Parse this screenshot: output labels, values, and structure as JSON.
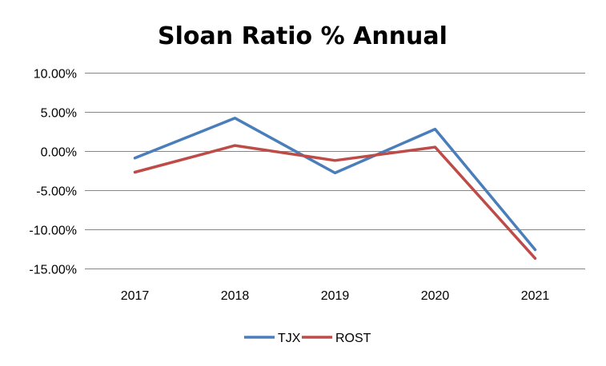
{
  "chart_data": {
    "type": "line",
    "title": "Sloan Ratio % Annual",
    "xlabel": "",
    "ylabel": "",
    "categories": [
      "2017",
      "2018",
      "2019",
      "2020",
      "2021"
    ],
    "y_ticks": [
      "10.00%",
      "5.00%",
      "0.00%",
      "-5.00%",
      "-10.00%",
      "-15.00%"
    ],
    "ylim": [
      -15,
      10
    ],
    "grid": true,
    "legend_position": "bottom",
    "series": [
      {
        "name": "TJX",
        "color": "#4a7ebb",
        "values": [
          -0.9,
          4.2,
          -2.8,
          2.8,
          -12.6
        ]
      },
      {
        "name": "ROST",
        "color": "#be4b48",
        "values": [
          -2.7,
          0.7,
          -1.2,
          0.5,
          -13.7
        ]
      }
    ]
  }
}
